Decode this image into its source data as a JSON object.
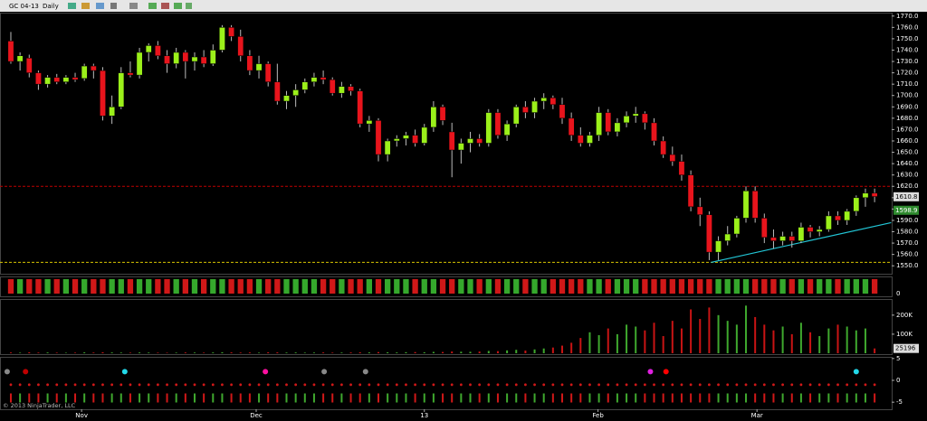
{
  "chart_data": {
    "type": "candlestick",
    "symbol": "GC 04-13",
    "period": "Daily",
    "up_color": "#9bf01a",
    "down_color": "#e8141c",
    "candles": [
      [
        1748,
        1756,
        1728,
        1730
      ],
      [
        1730,
        1738,
        1722,
        1735
      ],
      [
        1733,
        1736,
        1716,
        1720
      ],
      [
        1720,
        1722,
        1705,
        1710
      ],
      [
        1710,
        1718,
        1707,
        1716
      ],
      [
        1716,
        1719,
        1710,
        1712
      ],
      [
        1712,
        1718,
        1710,
        1716
      ],
      [
        1716,
        1720,
        1712,
        1714
      ],
      [
        1715,
        1728,
        1713,
        1726
      ],
      [
        1726,
        1728,
        1715,
        1722
      ],
      [
        1722,
        1725,
        1678,
        1682
      ],
      [
        1682,
        1700,
        1675,
        1690
      ],
      [
        1690,
        1725,
        1688,
        1720
      ],
      [
        1720,
        1730,
        1716,
        1718
      ],
      [
        1718,
        1742,
        1715,
        1738
      ],
      [
        1738,
        1746,
        1730,
        1744
      ],
      [
        1744,
        1748,
        1732,
        1735
      ],
      [
        1735,
        1740,
        1720,
        1728
      ],
      [
        1728,
        1742,
        1724,
        1738
      ],
      [
        1738,
        1740,
        1715,
        1730
      ],
      [
        1730,
        1738,
        1722,
        1734
      ],
      [
        1734,
        1740,
        1725,
        1728
      ],
      [
        1728,
        1745,
        1726,
        1740
      ],
      [
        1740,
        1762,
        1738,
        1760
      ],
      [
        1760,
        1762,
        1748,
        1752
      ],
      [
        1752,
        1758,
        1730,
        1735
      ],
      [
        1735,
        1740,
        1718,
        1722
      ],
      [
        1722,
        1735,
        1715,
        1728
      ],
      [
        1728,
        1730,
        1708,
        1712
      ],
      [
        1712,
        1728,
        1692,
        1695
      ],
      [
        1695,
        1704,
        1688,
        1700
      ],
      [
        1700,
        1710,
        1690,
        1705
      ],
      [
        1705,
        1715,
        1702,
        1712
      ],
      [
        1712,
        1720,
        1708,
        1716
      ],
      [
        1716,
        1722,
        1710,
        1714
      ],
      [
        1714,
        1716,
        1700,
        1702
      ],
      [
        1702,
        1712,
        1698,
        1708
      ],
      [
        1708,
        1710,
        1700,
        1704
      ],
      [
        1704,
        1706,
        1672,
        1675
      ],
      [
        1675,
        1682,
        1668,
        1678
      ],
      [
        1678,
        1680,
        1642,
        1648
      ],
      [
        1648,
        1662,
        1642,
        1660
      ],
      [
        1660,
        1665,
        1655,
        1662
      ],
      [
        1662,
        1668,
        1656,
        1665
      ],
      [
        1665,
        1670,
        1655,
        1658
      ],
      [
        1658,
        1675,
        1656,
        1672
      ],
      [
        1672,
        1695,
        1668,
        1690
      ],
      [
        1690,
        1692,
        1674,
        1678
      ],
      [
        1668,
        1676,
        1628,
        1652
      ],
      [
        1652,
        1662,
        1640,
        1658
      ],
      [
        1658,
        1668,
        1650,
        1662
      ],
      [
        1662,
        1666,
        1655,
        1658
      ],
      [
        1658,
        1688,
        1655,
        1685
      ],
      [
        1685,
        1688,
        1662,
        1665
      ],
      [
        1665,
        1678,
        1660,
        1675
      ],
      [
        1675,
        1692,
        1672,
        1690
      ],
      [
        1690,
        1695,
        1680,
        1685
      ],
      [
        1685,
        1698,
        1680,
        1695
      ],
      [
        1695,
        1702,
        1688,
        1698
      ],
      [
        1698,
        1700,
        1688,
        1692
      ],
      [
        1692,
        1698,
        1675,
        1680
      ],
      [
        1680,
        1685,
        1660,
        1665
      ],
      [
        1665,
        1672,
        1655,
        1658
      ],
      [
        1658,
        1668,
        1655,
        1665
      ],
      [
        1665,
        1690,
        1660,
        1685
      ],
      [
        1685,
        1688,
        1665,
        1668
      ],
      [
        1668,
        1680,
        1664,
        1676
      ],
      [
        1676,
        1686,
        1672,
        1682
      ],
      [
        1682,
        1690,
        1676,
        1684
      ],
      [
        1684,
        1686,
        1670,
        1676
      ],
      [
        1676,
        1680,
        1656,
        1660
      ],
      [
        1660,
        1664,
        1645,
        1648
      ],
      [
        1648,
        1655,
        1638,
        1642
      ],
      [
        1642,
        1648,
        1625,
        1630
      ],
      [
        1630,
        1634,
        1598,
        1602
      ],
      [
        1602,
        1610,
        1585,
        1595
      ],
      [
        1595,
        1598,
        1555,
        1562
      ],
      [
        1562,
        1576,
        1555,
        1572
      ],
      [
        1572,
        1585,
        1568,
        1578
      ],
      [
        1578,
        1594,
        1575,
        1592
      ],
      [
        1592,
        1620,
        1588,
        1616
      ],
      [
        1616,
        1620,
        1588,
        1592
      ],
      [
        1592,
        1596,
        1570,
        1575
      ],
      [
        1575,
        1582,
        1565,
        1572
      ],
      [
        1572,
        1580,
        1568,
        1576
      ],
      [
        1576,
        1580,
        1566,
        1572
      ],
      [
        1572,
        1588,
        1570,
        1584
      ],
      [
        1584,
        1586,
        1575,
        1580
      ],
      [
        1580,
        1585,
        1576,
        1582
      ],
      [
        1582,
        1598,
        1580,
        1594
      ],
      [
        1594,
        1598,
        1586,
        1590
      ],
      [
        1590,
        1600,
        1586,
        1598
      ],
      [
        1598,
        1612,
        1594,
        1610
      ],
      [
        1610,
        1618,
        1602,
        1614
      ],
      [
        1614,
        1618,
        1606,
        1611
      ]
    ],
    "xlim": [
      -1.18,
      95.86
    ],
    "xticks": [
      {
        "value": 7.7,
        "label": "Nov"
      },
      {
        "value": 26.7,
        "label": "Dec"
      },
      {
        "value": 45,
        "label": "13"
      },
      {
        "value": 63.9,
        "label": "Feb"
      },
      {
        "value": 81.2,
        "label": "Mar"
      }
    ],
    "ylim": [
      1543,
      1773
    ],
    "yticks": [
      {
        "value": 1550,
        "label": "1550.0"
      },
      {
        "value": 1560,
        "label": "1560.0"
      },
      {
        "value": 1570,
        "label": "1570.0"
      },
      {
        "value": 1580,
        "label": "1580.0"
      },
      {
        "value": 1590,
        "label": "1590.0"
      },
      {
        "value": 1600,
        "label": "1600.0"
      },
      {
        "value": 1610,
        "label": "1610.0"
      },
      {
        "value": 1620,
        "label": "1620.0"
      },
      {
        "value": 1630,
        "label": "1630.0"
      },
      {
        "value": 1640,
        "label": "1640.0"
      },
      {
        "value": 1650,
        "label": "1650.0"
      },
      {
        "value": 1660,
        "label": "1660.0"
      },
      {
        "value": 1670,
        "label": "1670.0"
      },
      {
        "value": 1680,
        "label": "1680.0"
      },
      {
        "value": 1690,
        "label": "1690.0"
      },
      {
        "value": 1700,
        "label": "1700.0"
      },
      {
        "value": 1710,
        "label": "1710.0"
      },
      {
        "value": 1720,
        "label": "1720.0"
      },
      {
        "value": 1730,
        "label": "1730.0"
      },
      {
        "value": 1740,
        "label": "1740.0"
      },
      {
        "value": 1750,
        "label": "1750.0"
      },
      {
        "value": 1760,
        "label": "1760.0"
      },
      {
        "value": 1770,
        "label": "1770.0"
      }
    ],
    "price_lines": [
      {
        "value": 1620,
        "color": "#c00000"
      },
      {
        "value": 1553,
        "color": "#d8c400"
      }
    ],
    "trend_line": {
      "x": [
        76.2,
        95.8
      ],
      "values": [
        1553,
        1588
      ],
      "color": "#22c6d6"
    },
    "last_price": 1610.8,
    "indicator_price": 1598.9,
    "strip_panel": {
      "yticks": [
        0
      ]
    },
    "volume": {
      "values": [
        4000,
        3000,
        5000,
        3500,
        4000,
        3000,
        2500,
        3000,
        4500,
        3500,
        5000,
        4000,
        3500,
        3000,
        4000,
        3500,
        3000,
        2500,
        3000,
        4000,
        3500,
        3000,
        4000,
        5000,
        4500,
        3500,
        4000,
        3000,
        5000,
        4500,
        3500,
        4000,
        3000,
        3500,
        4000,
        3000,
        3500,
        4000,
        5000,
        4500,
        6000,
        5000,
        4000,
        5500,
        6000,
        5000,
        7000,
        6500,
        9000,
        8000,
        7500,
        9000,
        12000,
        11000,
        15000,
        18000,
        14000,
        20000,
        25000,
        30000,
        40000,
        55000,
        80000,
        110000,
        95000,
        130000,
        100000,
        150000,
        140000,
        120000,
        160000,
        90000,
        170000,
        130000,
        230000,
        180000,
        240000,
        200000,
        170000,
        150000,
        250000,
        190000,
        150000,
        120000,
        140000,
        100000,
        160000,
        110000,
        90000,
        130000,
        150000,
        140000,
        120000,
        130000,
        25196
      ],
      "up_color": "#3fa82e",
      "down_color": "#c81414",
      "ylim": [
        0,
        275000
      ],
      "yticks": [
        {
          "value": 100000,
          "label": "100K"
        },
        {
          "value": 200000,
          "label": "200K"
        }
      ],
      "last": 25196
    },
    "signal_panel": {
      "ylim": [
        -6,
        6
      ],
      "yticks": [
        5,
        0,
        -5
      ],
      "signals": {
        "x": [
          -0.4,
          1.6,
          12.4,
          27.7,
          34.1,
          38.6,
          69.6,
          71.3,
          92
        ],
        "values": [
          2,
          2,
          2,
          2,
          2,
          2,
          2,
          2,
          2
        ],
        "colors": [
          "#888888",
          "#c00000",
          "#22d8e8",
          "#ff10a0",
          "#888888",
          "#888888",
          "#e020e0",
          "#ff0000",
          "#22d8e8"
        ]
      }
    },
    "copyright": "© 2013 NinjaTrader, LLC"
  }
}
